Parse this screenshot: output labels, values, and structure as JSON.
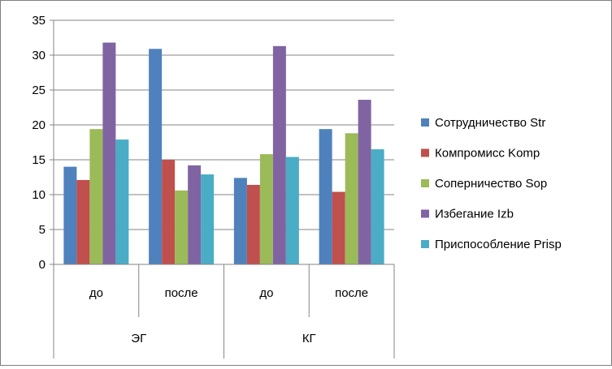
{
  "chart_data": {
    "type": "bar",
    "title": "",
    "xlabel": "",
    "ylabel": "",
    "ylim": [
      0,
      35
    ],
    "yticks": [
      0,
      5,
      10,
      15,
      20,
      25,
      30,
      35
    ],
    "grid": "horizontal",
    "legend_position": "right",
    "groups": [
      {
        "label": "ЭГ",
        "subcategories": [
          "до",
          "после"
        ]
      },
      {
        "label": "КГ",
        "subcategories": [
          "до",
          "после"
        ]
      }
    ],
    "categories": [
      "до",
      "после",
      "до",
      "после"
    ],
    "series": [
      {
        "name": "Сотрудничество Str",
        "color": "#4F81BD",
        "values": [
          14.0,
          30.9,
          12.4,
          19.4
        ]
      },
      {
        "name": "Компромисс Komp",
        "color": "#C0504D",
        "values": [
          12.1,
          15.0,
          11.4,
          10.4
        ]
      },
      {
        "name": "Соперничество Sop",
        "color": "#9BBB59",
        "values": [
          19.4,
          10.6,
          15.8,
          18.8
        ]
      },
      {
        "name": "Избегание Izb",
        "color": "#8064A2",
        "values": [
          31.8,
          14.2,
          31.3,
          23.6
        ]
      },
      {
        "name": "Приспособление Prisp",
        "color": "#4BACC6",
        "values": [
          17.9,
          12.9,
          15.4,
          16.5
        ]
      }
    ]
  }
}
